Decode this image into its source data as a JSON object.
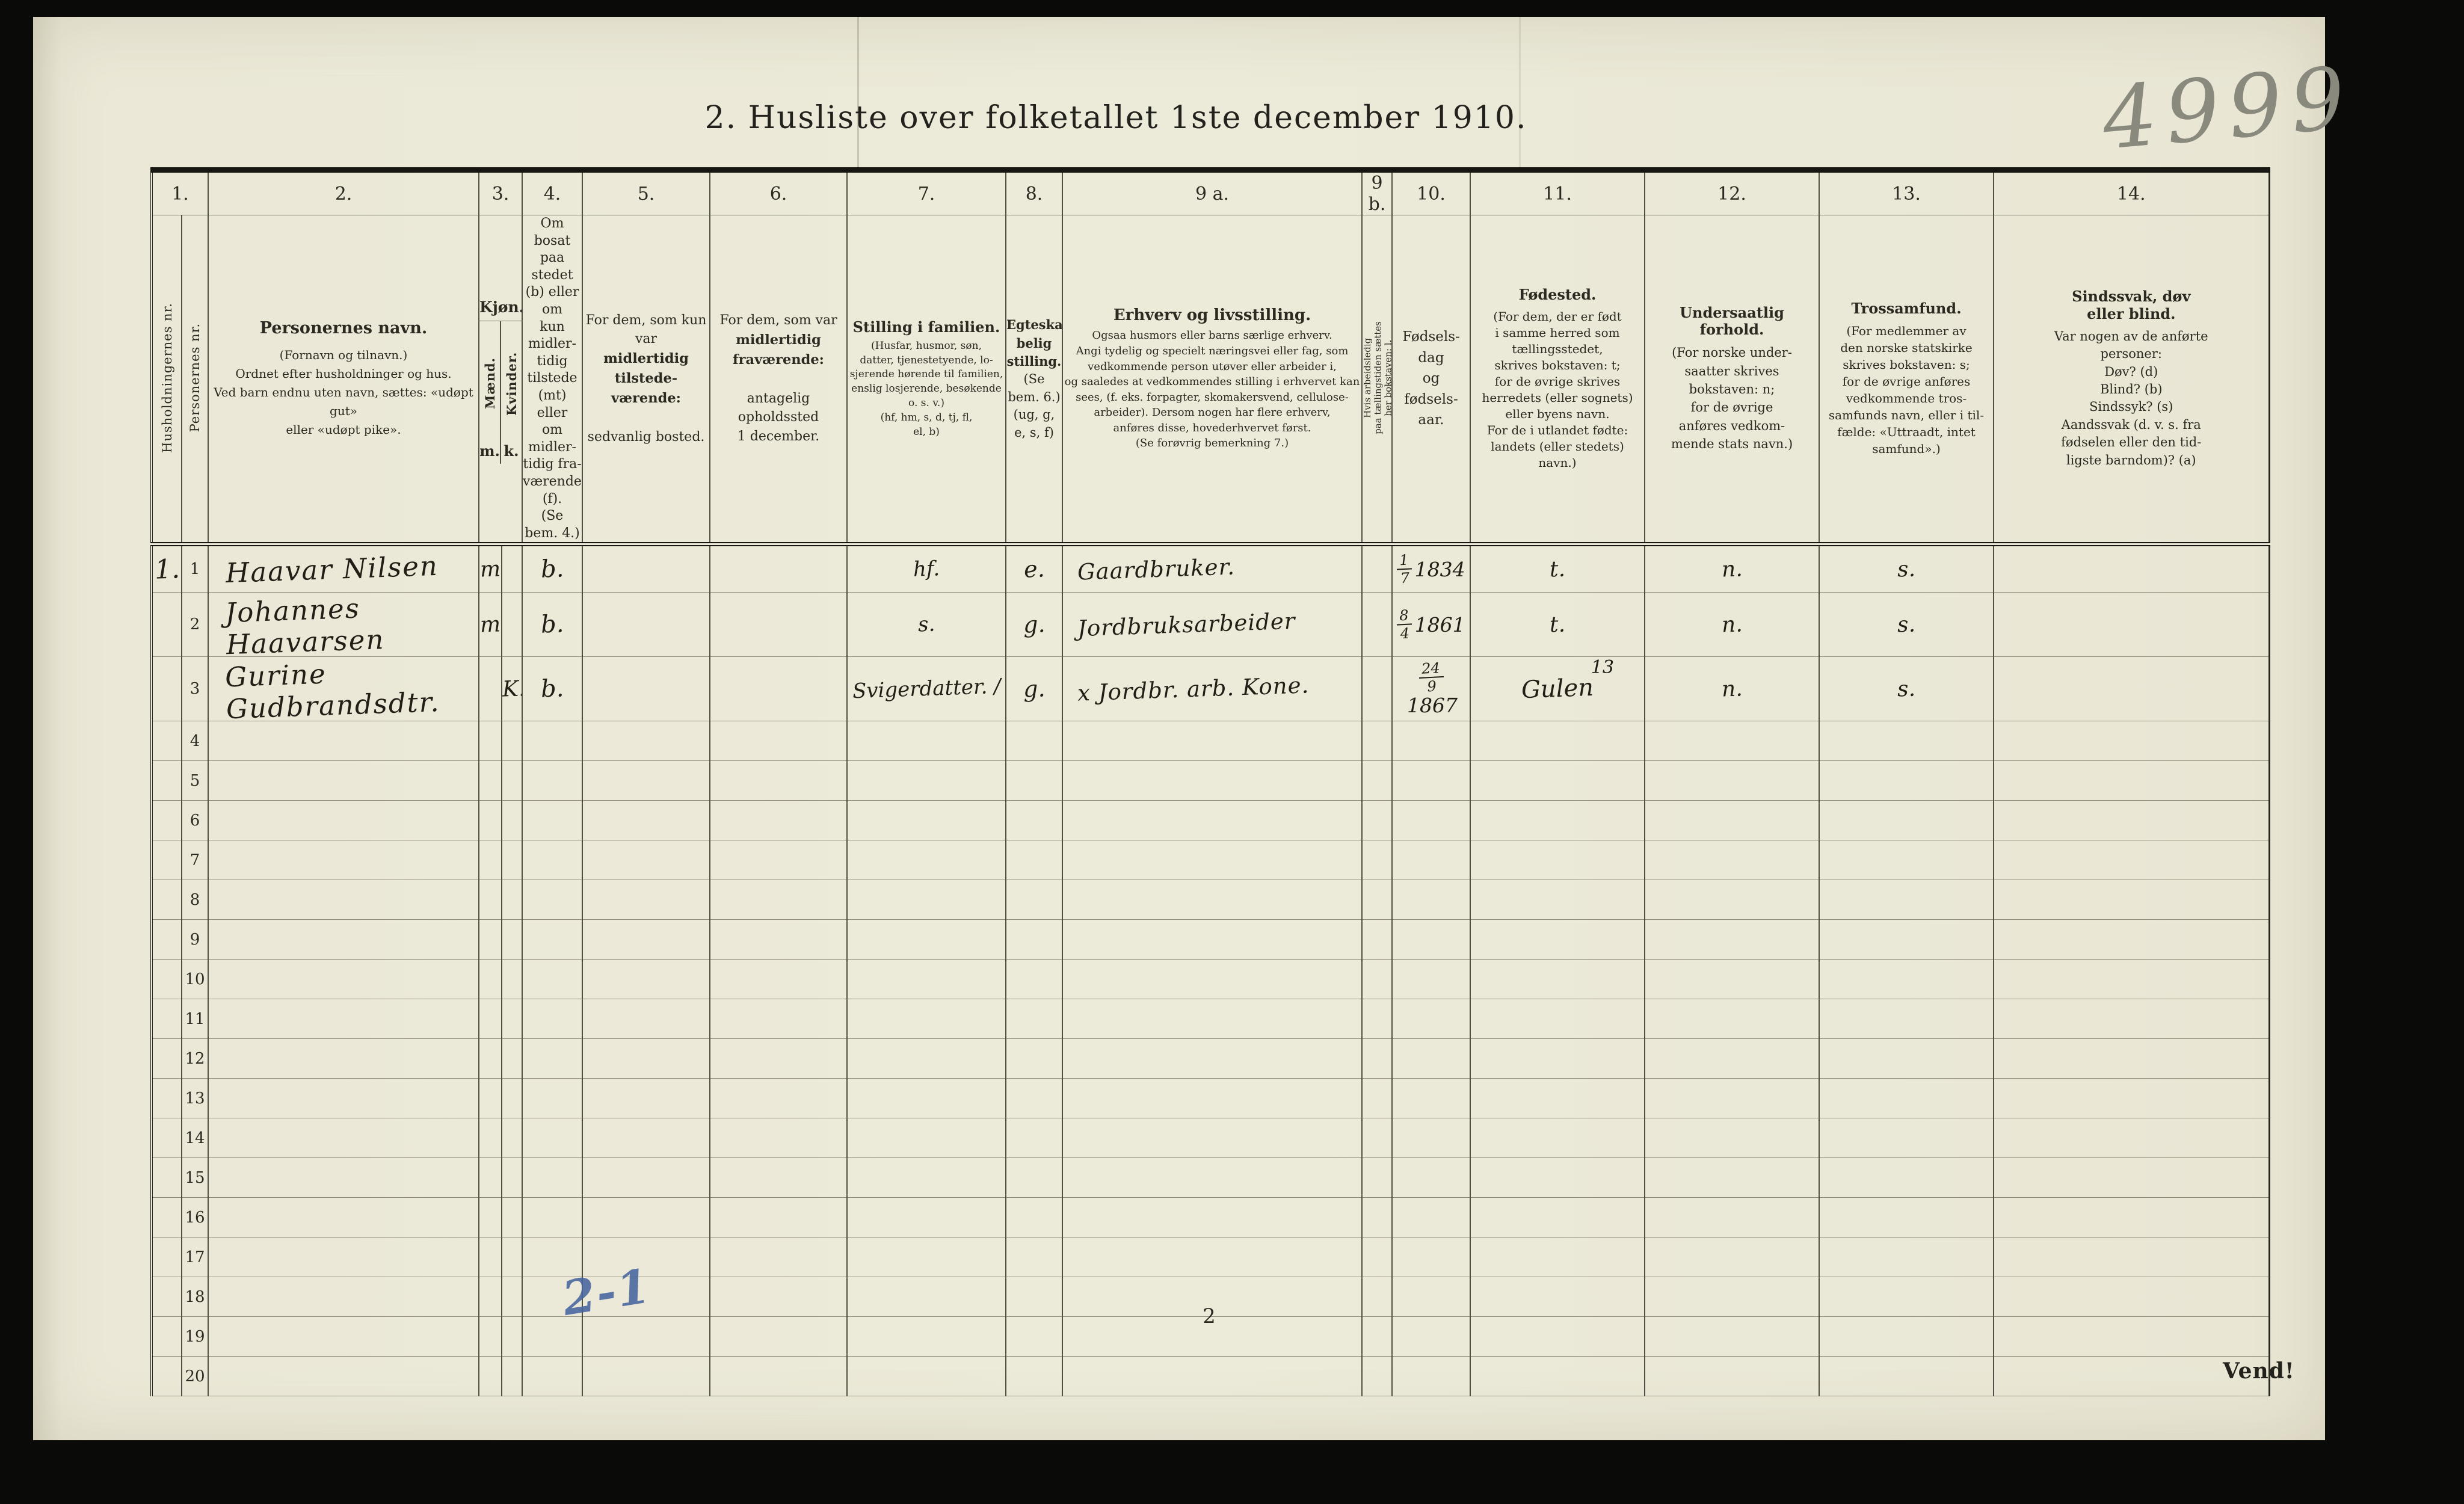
{
  "page": {
    "title": "2. Husliste over folketallet 1ste december 1910.",
    "corner_number": "4999",
    "page_number": "2",
    "turn_note": "Vend!",
    "pencil_note": "2-1"
  },
  "table": {
    "col_numbers": {
      "n1": "1.",
      "n2": "2.",
      "n3": "3.",
      "n4": "4.",
      "n5": "5.",
      "n6": "6.",
      "n7": "7.",
      "n8": "8.",
      "n9a": "9 a.",
      "n9b": "9 b.",
      "n10": "10.",
      "n11": "11.",
      "n12": "12.",
      "n13": "13.",
      "n14": "14."
    },
    "headers": {
      "household_no_vertical": "Husholdningernes nr.",
      "person_no_vertical": "Personernes nr.",
      "c2": {
        "title": "Personernes navn.",
        "text": "(Fornavn og tilnavn.)\nOrdnet efter husholdninger og hus.\nVed barn endnu uten navn, sættes: «udøpt gut»\neller «udøpt pike»."
      },
      "c3": {
        "title": "Kjøn.",
        "male_vertical": "Mænd.",
        "female_vertical": "Kvinder.",
        "male_abbr": "m.",
        "female_abbr": "k."
      },
      "c4": {
        "text": "Om bosat\npaa stedet\n(b) eller om\nkun midler-\ntidig tilstede\n(mt) eller\nom midler-\ntidig fra-\nværende (f).\n(Se bem. 4.)"
      },
      "c5": {
        "pre": "For dem, som kun var",
        "bold": "midlertidig tilstede-\nværende:",
        "post": "sedvanlig bosted."
      },
      "c6": {
        "pre": "For dem, som var",
        "bold": "midlertidig\nfraværende:",
        "post": "antagelig opholdssted\n1 december."
      },
      "c7": {
        "title": "Stilling i familien.",
        "text": "(Husfar, husmor, søn,\ndatter, tjenestetyende, lo-\nsjerende hørende til familien,\nenslig losjerende, besøkende\no. s. v.)\n(hf, hm, s, d, tj, fl,\nel, b)"
      },
      "c8": {
        "bold": "Egteska-\nbelig\nstilling.",
        "text": "(Se bem. 6.)\n(ug, g,\ne, s, f)"
      },
      "c9a": {
        "title": "Erhverv og livsstilling.",
        "text": "Ogsaa husmors eller barns særlige erhverv.\nAngi tydelig og specielt næringsvei eller fag, som\nvedkommende person utøver eller arbeider i,\nog saaledes at vedkommendes stilling i erhvervet kan\nsees, (f. eks. forpagter, skomakersvend, cellulose-\narbeider).  Dersom nogen har flere erhverv,\nanføres disse, hovederhvervet først.\n(Se forøvrig bemerkning 7.)"
      },
      "c9b": {
        "vertical": "Hvis arbeidsledig\npaa tællingstiden sættes\nher bokstaven: l."
      },
      "c10": {
        "text": "Fødsels-\ndag\nog\nfødsels-\naar."
      },
      "c11": {
        "title": "Fødested.",
        "text": "(For dem, der er født\ni samme herred som\ntællingsstedet,\nskrives bokstaven: t;\nfor de øvrige skrives\nherredets (eller sognets)\neller byens navn.\nFor de i utlandet fødte:\nlandets (eller stedets)\nnavn.)"
      },
      "c12": {
        "title": "Undersaatlig\nforhold.",
        "text": "(For norske under-\nsaatter skrives\nbokstaven: n;\nfor de øvrige\nanføres vedkom-\nmende stats navn.)"
      },
      "c13": {
        "title": "Trossamfund.",
        "text": "(For medlemmer av\nden norske statskirke\nskrives bokstaven: s;\nfor de øvrige anføres\nvedkommende tros-\nsamfunds navn, eller i til-\nfælde: «Uttraadt, intet\nsamfund».)"
      },
      "c14": {
        "title": "Sindssvak, døv\neller blind.",
        "text": "Var nogen av de anførte\npersoner:\nDøv?        (d)\nBlind?      (b)\nSindssyk?  (s)\nAandssvak (d. v. s. fra\nfødselen eller den tid-\nligste barndom)?  (a)"
      }
    },
    "rows": [
      {
        "hh": "1.",
        "nr": "1",
        "name": "Haavar Nilsen",
        "sex_m": "m",
        "sex_k": "",
        "c4": "b.",
        "c5": "",
        "c6": "",
        "c7": "hf.",
        "c8": "e.",
        "c9a": "Gaardbruker.",
        "c9b": "",
        "bdate": {
          "d": "1",
          "m": "7",
          "y": "1834"
        },
        "c11": "t.",
        "c12": "n.",
        "c13": "s.",
        "c14": ""
      },
      {
        "hh": "",
        "nr": "2",
        "name": "Johannes Haavarsen",
        "sex_m": "m",
        "sex_k": "",
        "c4": "b.",
        "c5": "",
        "c6": "",
        "c7": "s.",
        "c8": "g.",
        "c9a": "Jordbruksarbeider",
        "c9b": "",
        "bdate": {
          "d": "8",
          "m": "4",
          "y": "1861"
        },
        "c11": "t.",
        "c12": "n.",
        "c13": "s.",
        "c14": ""
      },
      {
        "hh": "",
        "nr": "3",
        "name": "Gurine Gudbrandsdtr.",
        "sex_m": "",
        "sex_k": "K.",
        "c4": "b.",
        "c5": "",
        "c6": "",
        "c7": "Svigerdatter. /",
        "c8": "g.",
        "c9a": "x Jordbr. arb. Kone.",
        "c9b": "",
        "bdate": {
          "d": "24",
          "m": "9",
          "y": "1867"
        },
        "c11": "Gulen",
        "c11_note": "13",
        "c12": "n.",
        "c13": "s.",
        "c14": ""
      },
      {
        "nr": "4"
      },
      {
        "nr": "5"
      },
      {
        "nr": "6"
      },
      {
        "nr": "7"
      },
      {
        "nr": "8"
      },
      {
        "nr": "9"
      },
      {
        "nr": "10"
      },
      {
        "nr": "11"
      },
      {
        "nr": "12"
      },
      {
        "nr": "13"
      },
      {
        "nr": "14"
      },
      {
        "nr": "15"
      },
      {
        "nr": "16"
      },
      {
        "nr": "17"
      },
      {
        "nr": "18"
      },
      {
        "nr": "19"
      },
      {
        "nr": "20"
      }
    ]
  }
}
